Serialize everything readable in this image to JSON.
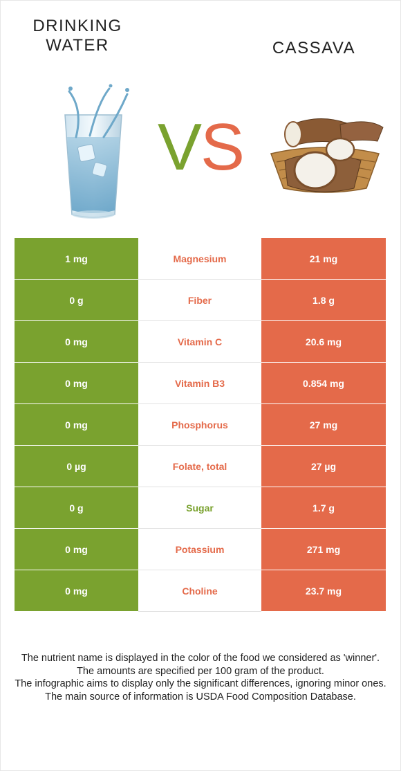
{
  "colors": {
    "left_food": "#7aa22f",
    "right_food": "#e46a4a"
  },
  "header": {
    "left_food": "DRINKING\nWATER",
    "right_food": "CASSAVA",
    "vs_v": "V",
    "vs_s": "S"
  },
  "images": {
    "left": "glass-of-water-image",
    "right": "cassava-basket-image"
  },
  "rows": [
    {
      "left": "1 mg",
      "nutrient": "Magnesium",
      "right": "21 mg",
      "winner": "right"
    },
    {
      "left": "0 g",
      "nutrient": "Fiber",
      "right": "1.8 g",
      "winner": "right"
    },
    {
      "left": "0 mg",
      "nutrient": "Vitamin C",
      "right": "20.6 mg",
      "winner": "right"
    },
    {
      "left": "0 mg",
      "nutrient": "Vitamin B3",
      "right": "0.854 mg",
      "winner": "right"
    },
    {
      "left": "0 mg",
      "nutrient": "Phosphorus",
      "right": "27 mg",
      "winner": "right"
    },
    {
      "left": "0 µg",
      "nutrient": "Folate, total",
      "right": "27 µg",
      "winner": "right"
    },
    {
      "left": "0 g",
      "nutrient": "Sugar",
      "right": "1.7 g",
      "winner": "left"
    },
    {
      "left": "0 mg",
      "nutrient": "Potassium",
      "right": "271 mg",
      "winner": "right"
    },
    {
      "left": "0 mg",
      "nutrient": "Choline",
      "right": "23.7 mg",
      "winner": "right"
    }
  ],
  "footer": {
    "line1": "The nutrient name is displayed in the color of the food we considered as 'winner'.",
    "line2": "The amounts are specified per 100 gram of the product.",
    "line3": "The infographic aims to display only the significant differences, ignoring minor ones.",
    "line4": "The main source of information is USDA Food Composition Database."
  }
}
